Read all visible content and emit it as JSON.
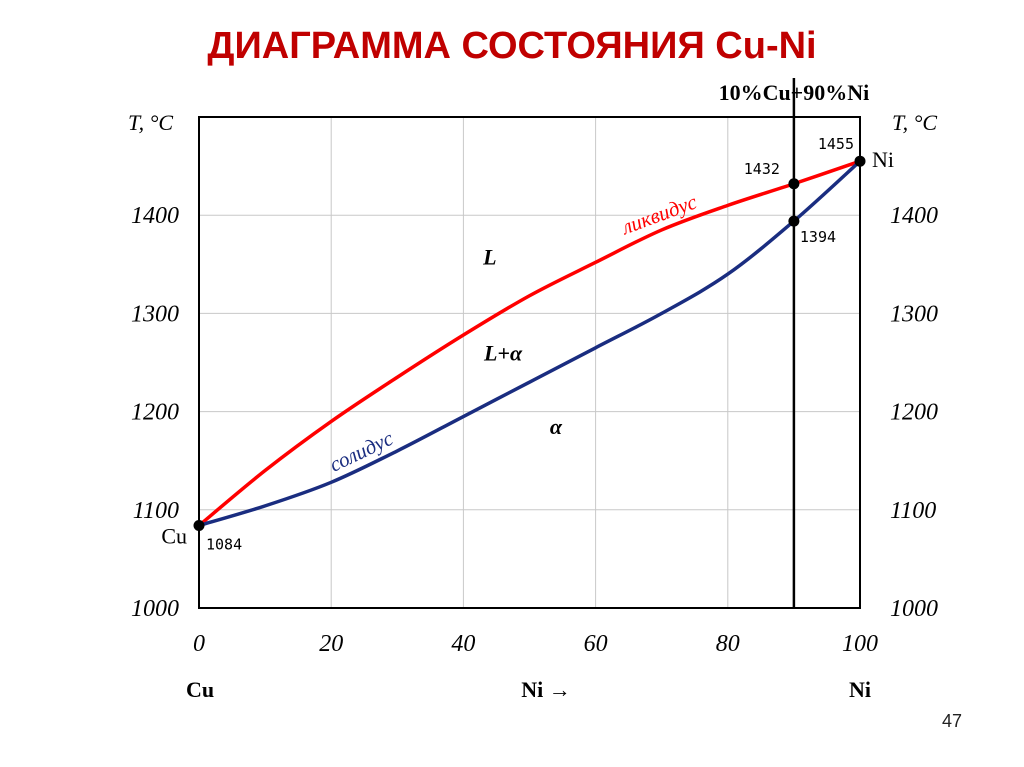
{
  "page_number": "47",
  "chart_data": {
    "type": "line",
    "title": "ДИАГРАММА СОСТОЯНИЯ Cu-Ni",
    "ylabel_left": "T, °C",
    "ylabel_right": "T, °C",
    "xlim": [
      0,
      100
    ],
    "ylim": [
      1000,
      1500
    ],
    "x_ticks": [
      "0",
      "20",
      "40",
      "60",
      "80",
      "100"
    ],
    "y_ticks": [
      "1000",
      "1100",
      "1200",
      "1300",
      "1400"
    ],
    "grid": true,
    "x_left_label": "Cu",
    "x_center_label": "Ni →",
    "x_right_label": "Ni",
    "vertical_line": {
      "x": 90,
      "label": "10%Cu+90%Ni"
    },
    "series": [
      {
        "name": "ликвидус",
        "color": "#ff0000",
        "x": [
          0,
          10,
          20,
          30,
          40,
          50,
          60,
          70,
          80,
          90,
          100
        ],
        "y": [
          1084,
          1140,
          1190,
          1235,
          1278,
          1318,
          1352,
          1385,
          1410,
          1432,
          1455
        ]
      },
      {
        "name": "солидус",
        "color": "#1a2d80",
        "x": [
          0,
          10,
          20,
          30,
          40,
          50,
          60,
          70,
          80,
          90,
          100
        ],
        "y": [
          1084,
          1104,
          1128,
          1160,
          1195,
          1230,
          1265,
          1300,
          1340,
          1394,
          1455
        ]
      }
    ],
    "points": [
      {
        "x": 0,
        "y": 1084,
        "label": "1084",
        "endpoint_label": "Cu"
      },
      {
        "x": 90,
        "y": 1432,
        "label": "1432"
      },
      {
        "x": 90,
        "y": 1394,
        "label": "1394"
      },
      {
        "x": 100,
        "y": 1455,
        "label": "1455",
        "endpoint_label": "Ni"
      }
    ],
    "regions": [
      {
        "label": "L",
        "x": 44,
        "y": 1350
      },
      {
        "label": "L+α",
        "x": 46,
        "y": 1252
      },
      {
        "label": "α",
        "x": 54,
        "y": 1177
      }
    ]
  }
}
